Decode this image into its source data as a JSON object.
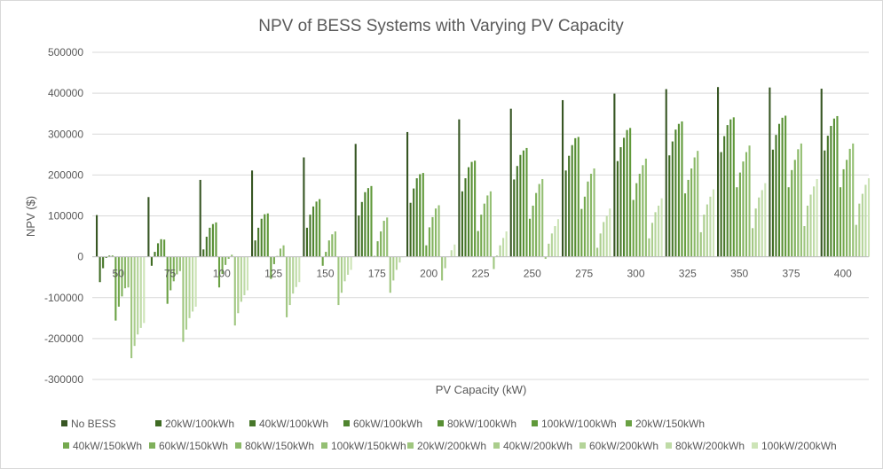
{
  "chart_data": {
    "type": "bar",
    "title": "NPV of BESS Systems with Varying PV Capacity",
    "xlabel": "PV Capacity (kW)",
    "ylabel": "NPV ($)",
    "ylim": [
      -300000,
      500000
    ],
    "yticks": [
      500000,
      400000,
      300000,
      200000,
      100000,
      0,
      -100000,
      -200000,
      -300000
    ],
    "grid": true,
    "legend_position": "bottom",
    "categories": [
      "50",
      "75",
      "100",
      "125",
      "150",
      "175",
      "200",
      "225",
      "250",
      "275",
      "300",
      "325",
      "350",
      "375",
      "400"
    ],
    "series": [
      {
        "name": "No BESS",
        "color": "#375623",
        "values": [
          102000,
          146000,
          188000,
          211000,
          243000,
          276000,
          305000,
          336000,
          362000,
          383000,
          399000,
          410000,
          415000,
          414000,
          411000
        ]
      },
      {
        "name": "20kW/100kWh",
        "color": "#3f6b23",
        "values": [
          -62000,
          -22000,
          18000,
          40000,
          71000,
          101000,
          132000,
          160000,
          189000,
          211000,
          234000,
          248000,
          256000,
          262000,
          260000
        ]
      },
      {
        "name": "40kW/100kWh",
        "color": "#47772a",
        "values": [
          -28000,
          12000,
          49000,
          71000,
          103000,
          134000,
          167000,
          192000,
          222000,
          247000,
          268000,
          282000,
          295000,
          298000,
          296000
        ]
      },
      {
        "name": "60kW/100kWh",
        "color": "#4f842f",
        "values": [
          -3000,
          33000,
          71000,
          93000,
          123000,
          158000,
          192000,
          219000,
          249000,
          273000,
          291000,
          311000,
          322000,
          325000,
          320000
        ]
      },
      {
        "name": "80kW/100kWh",
        "color": "#588f34",
        "values": [
          3000,
          43000,
          80000,
          104000,
          135000,
          168000,
          202000,
          232000,
          260000,
          290000,
          310000,
          325000,
          336000,
          340000,
          338000
        ]
      },
      {
        "name": "100kW/100kWh",
        "color": "#60993a",
        "values": [
          3000,
          42000,
          84000,
          106000,
          141000,
          173000,
          205000,
          235000,
          266000,
          293000,
          315000,
          331000,
          341000,
          345000,
          344000
        ]
      },
      {
        "name": "20kW/150kWh",
        "color": "#6aa143",
        "values": [
          -156000,
          -115000,
          -75000,
          -54000,
          -22000,
          2000,
          28000,
          63000,
          93000,
          117000,
          139000,
          155000,
          170000,
          170000,
          170000
        ]
      },
      {
        "name": "40kW/150kWh",
        "color": "#75a94f",
        "values": [
          -122000,
          -82000,
          -42000,
          -18000,
          12000,
          38000,
          72000,
          103000,
          125000,
          147000,
          180000,
          188000,
          206000,
          212000,
          214000
        ]
      },
      {
        "name": "60kW/150kWh",
        "color": "#7fb05b",
        "values": [
          -97000,
          -60000,
          -20000,
          2000,
          40000,
          62000,
          97000,
          130000,
          156000,
          184000,
          203000,
          216000,
          233000,
          237000,
          237000
        ]
      },
      {
        "name": "80kW/150kWh",
        "color": "#8ab867",
        "values": [
          -77000,
          -43000,
          -5000,
          20000,
          55000,
          88000,
          118000,
          150000,
          178000,
          203000,
          224000,
          243000,
          256000,
          263000,
          264000
        ]
      },
      {
        "name": "100kW/150kWh",
        "color": "#94bf73",
        "values": [
          -75000,
          -35000,
          5000,
          28000,
          62000,
          96000,
          126000,
          160000,
          190000,
          216000,
          240000,
          259000,
          272000,
          277000,
          277000
        ]
      },
      {
        "name": "20kW/200kWh",
        "color": "#9fc67f",
        "values": [
          -248000,
          -208000,
          -168000,
          -148000,
          -118000,
          -88000,
          -58000,
          -30000,
          -5000,
          22000,
          45000,
          60000,
          70000,
          75000,
          78000
        ]
      },
      {
        "name": "40kW/200kWh",
        "color": "#aacd8c",
        "values": [
          -218000,
          -178000,
          -138000,
          -118000,
          -88000,
          -58000,
          -28000,
          3000,
          32000,
          57000,
          83000,
          103000,
          118000,
          125000,
          130000
        ]
      },
      {
        "name": "60kW/200kWh",
        "color": "#b4d499",
        "values": [
          -190000,
          -150000,
          -110000,
          -90000,
          -60000,
          -32000,
          0,
          28000,
          57000,
          85000,
          109000,
          128000,
          145000,
          152000,
          154000
        ]
      },
      {
        "name": "80kW/200kWh",
        "color": "#bfdba7",
        "values": [
          -174000,
          -134000,
          -94000,
          -74000,
          -44000,
          -14000,
          16000,
          46000,
          75000,
          100000,
          125000,
          147000,
          163000,
          172000,
          176000
        ]
      },
      {
        "name": "100kW/200kWh",
        "color": "#cde4b7",
        "values": [
          -162000,
          -122000,
          -82000,
          -62000,
          -32000,
          0,
          30000,
          62000,
          92000,
          118000,
          143000,
          165000,
          180000,
          190000,
          192000
        ]
      }
    ]
  }
}
